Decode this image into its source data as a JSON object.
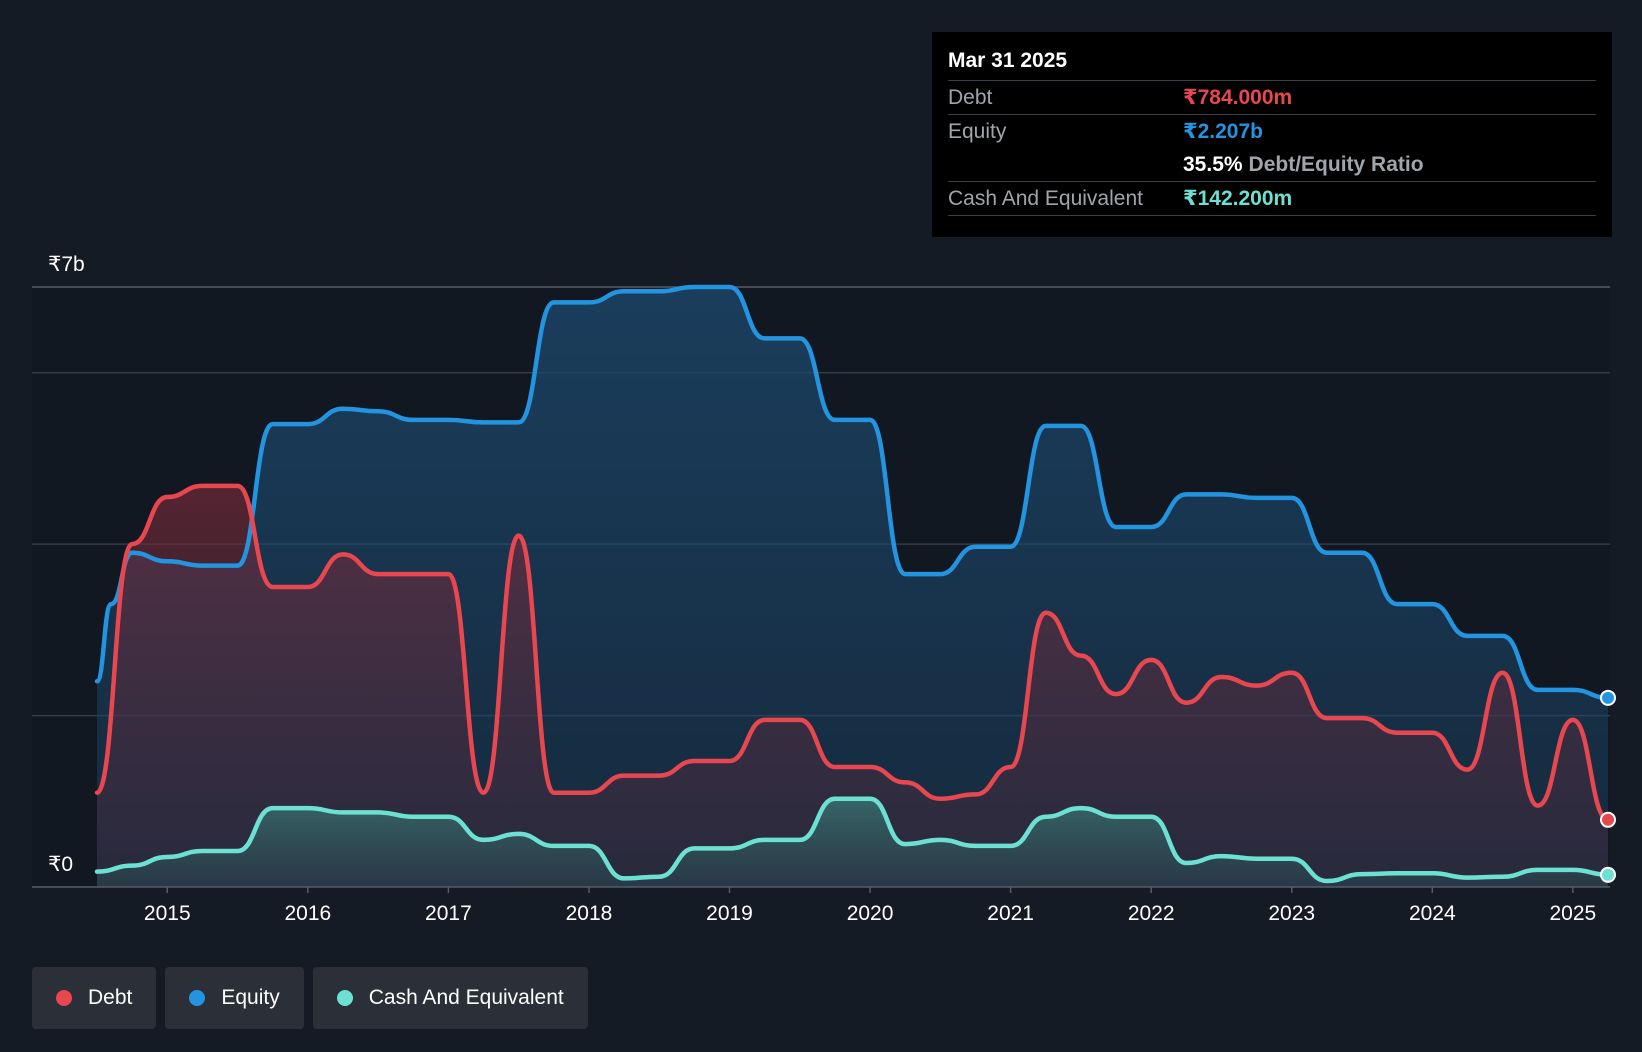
{
  "tooltip": {
    "date": "Mar 31 2025",
    "rows": {
      "debt_label": "Debt",
      "debt_value": "₹784.000m",
      "equity_label": "Equity",
      "equity_value": "₹2.207b",
      "ratio_value": "35.5%",
      "ratio_label": "Debt/Equity Ratio",
      "cash_label": "Cash And Equivalent",
      "cash_value": "₹142.200m"
    }
  },
  "legend": {
    "debt": "Debt",
    "equity": "Equity",
    "cash": "Cash And Equivalent"
  },
  "colors": {
    "debt": "#e8474f",
    "equity": "#2394df",
    "cash": "#6ce1d3",
    "background": "#151b24",
    "grid": "#333a44"
  },
  "chart_data": {
    "type": "area",
    "title": "",
    "xlabel": "",
    "ylabel": "",
    "y_top_label": "₹7b",
    "y_bottom_label": "₹0",
    "xlim": [
      2014.5,
      2025.25
    ],
    "ylim": [
      0,
      7
    ],
    "grid_values": [
      7,
      6,
      4,
      2
    ],
    "x_ticks": [
      {
        "label": "2015",
        "value": 2015
      },
      {
        "label": "2016",
        "value": 2016
      },
      {
        "label": "2017",
        "value": 2017
      },
      {
        "label": "2018",
        "value": 2018
      },
      {
        "label": "2019",
        "value": 2019
      },
      {
        "label": "2020",
        "value": 2020
      },
      {
        "label": "2021",
        "value": 2021
      },
      {
        "label": "2022",
        "value": 2022
      },
      {
        "label": "2023",
        "value": 2023
      },
      {
        "label": "2024",
        "value": 2024
      },
      {
        "label": "2025",
        "value": 2025
      }
    ],
    "series": [
      {
        "name": "Equity",
        "key": "equity",
        "points": [
          [
            2014.5,
            2.4
          ],
          [
            2014.6,
            3.3
          ],
          [
            2014.75,
            3.9
          ],
          [
            2015.0,
            3.8
          ],
          [
            2015.25,
            3.75
          ],
          [
            2015.5,
            3.75
          ],
          [
            2015.75,
            5.4
          ],
          [
            2016.0,
            5.4
          ],
          [
            2016.25,
            5.58
          ],
          [
            2016.5,
            5.55
          ],
          [
            2016.75,
            5.45
          ],
          [
            2017.0,
            5.45
          ],
          [
            2017.25,
            5.42
          ],
          [
            2017.5,
            5.42
          ],
          [
            2017.75,
            6.82
          ],
          [
            2018.0,
            6.82
          ],
          [
            2018.25,
            6.95
          ],
          [
            2018.5,
            6.95
          ],
          [
            2018.75,
            7.0
          ],
          [
            2019.0,
            7.0
          ],
          [
            2019.25,
            6.4
          ],
          [
            2019.5,
            6.4
          ],
          [
            2019.75,
            5.45
          ],
          [
            2020.0,
            5.45
          ],
          [
            2020.25,
            3.65
          ],
          [
            2020.5,
            3.65
          ],
          [
            2020.75,
            3.97
          ],
          [
            2021.0,
            3.97
          ],
          [
            2021.25,
            5.38
          ],
          [
            2021.5,
            5.38
          ],
          [
            2021.75,
            4.2
          ],
          [
            2022.0,
            4.2
          ],
          [
            2022.25,
            4.58
          ],
          [
            2022.5,
            4.58
          ],
          [
            2022.75,
            4.54
          ],
          [
            2023.0,
            4.54
          ],
          [
            2023.25,
            3.9
          ],
          [
            2023.5,
            3.9
          ],
          [
            2023.75,
            3.3
          ],
          [
            2024.0,
            3.3
          ],
          [
            2024.25,
            2.93
          ],
          [
            2024.5,
            2.93
          ],
          [
            2024.75,
            2.3
          ],
          [
            2025.0,
            2.3
          ],
          [
            2025.25,
            2.207
          ]
        ]
      },
      {
        "name": "Debt",
        "key": "debt",
        "points": [
          [
            2014.5,
            1.1
          ],
          [
            2014.75,
            4.0
          ],
          [
            2015.0,
            4.55
          ],
          [
            2015.25,
            4.68
          ],
          [
            2015.5,
            4.68
          ],
          [
            2015.75,
            3.5
          ],
          [
            2016.0,
            3.5
          ],
          [
            2016.25,
            3.88
          ],
          [
            2016.5,
            3.65
          ],
          [
            2016.75,
            3.65
          ],
          [
            2017.0,
            3.65
          ],
          [
            2017.25,
            1.1
          ],
          [
            2017.5,
            4.1
          ],
          [
            2017.75,
            1.1
          ],
          [
            2018.0,
            1.1
          ],
          [
            2018.25,
            1.3
          ],
          [
            2018.5,
            1.3
          ],
          [
            2018.75,
            1.47
          ],
          [
            2019.0,
            1.47
          ],
          [
            2019.25,
            1.95
          ],
          [
            2019.5,
            1.95
          ],
          [
            2019.75,
            1.4
          ],
          [
            2020.0,
            1.4
          ],
          [
            2020.25,
            1.22
          ],
          [
            2020.5,
            1.03
          ],
          [
            2020.75,
            1.08
          ],
          [
            2021.0,
            1.4
          ],
          [
            2021.25,
            3.2
          ],
          [
            2021.5,
            2.7
          ],
          [
            2021.75,
            2.25
          ],
          [
            2022.0,
            2.65
          ],
          [
            2022.25,
            2.15
          ],
          [
            2022.5,
            2.45
          ],
          [
            2022.75,
            2.35
          ],
          [
            2023.0,
            2.5
          ],
          [
            2023.25,
            1.97
          ],
          [
            2023.5,
            1.97
          ],
          [
            2023.75,
            1.8
          ],
          [
            2024.0,
            1.8
          ],
          [
            2024.25,
            1.37
          ],
          [
            2024.5,
            2.5
          ],
          [
            2024.75,
            0.95
          ],
          [
            2025.0,
            1.95
          ],
          [
            2025.25,
            0.784
          ]
        ]
      },
      {
        "name": "Cash And Equivalent",
        "key": "cash",
        "points": [
          [
            2014.5,
            0.18
          ],
          [
            2014.75,
            0.25
          ],
          [
            2015.0,
            0.35
          ],
          [
            2015.25,
            0.42
          ],
          [
            2015.5,
            0.42
          ],
          [
            2015.75,
            0.92
          ],
          [
            2016.0,
            0.92
          ],
          [
            2016.25,
            0.87
          ],
          [
            2016.5,
            0.87
          ],
          [
            2016.75,
            0.82
          ],
          [
            2017.0,
            0.82
          ],
          [
            2017.25,
            0.55
          ],
          [
            2017.5,
            0.62
          ],
          [
            2017.75,
            0.48
          ],
          [
            2018.0,
            0.48
          ],
          [
            2018.25,
            0.1
          ],
          [
            2018.5,
            0.12
          ],
          [
            2018.75,
            0.45
          ],
          [
            2019.0,
            0.45
          ],
          [
            2019.25,
            0.55
          ],
          [
            2019.5,
            0.55
          ],
          [
            2019.75,
            1.03
          ],
          [
            2020.0,
            1.03
          ],
          [
            2020.25,
            0.5
          ],
          [
            2020.5,
            0.55
          ],
          [
            2020.75,
            0.48
          ],
          [
            2021.0,
            0.48
          ],
          [
            2021.25,
            0.82
          ],
          [
            2021.5,
            0.92
          ],
          [
            2021.75,
            0.82
          ],
          [
            2022.0,
            0.82
          ],
          [
            2022.25,
            0.28
          ],
          [
            2022.5,
            0.36
          ],
          [
            2022.75,
            0.33
          ],
          [
            2023.0,
            0.33
          ],
          [
            2023.25,
            0.07
          ],
          [
            2023.5,
            0.15
          ],
          [
            2023.75,
            0.16
          ],
          [
            2024.0,
            0.16
          ],
          [
            2024.25,
            0.11
          ],
          [
            2024.5,
            0.12
          ],
          [
            2024.75,
            0.2
          ],
          [
            2025.0,
            0.2
          ],
          [
            2025.25,
            0.1422
          ]
        ]
      }
    ]
  }
}
